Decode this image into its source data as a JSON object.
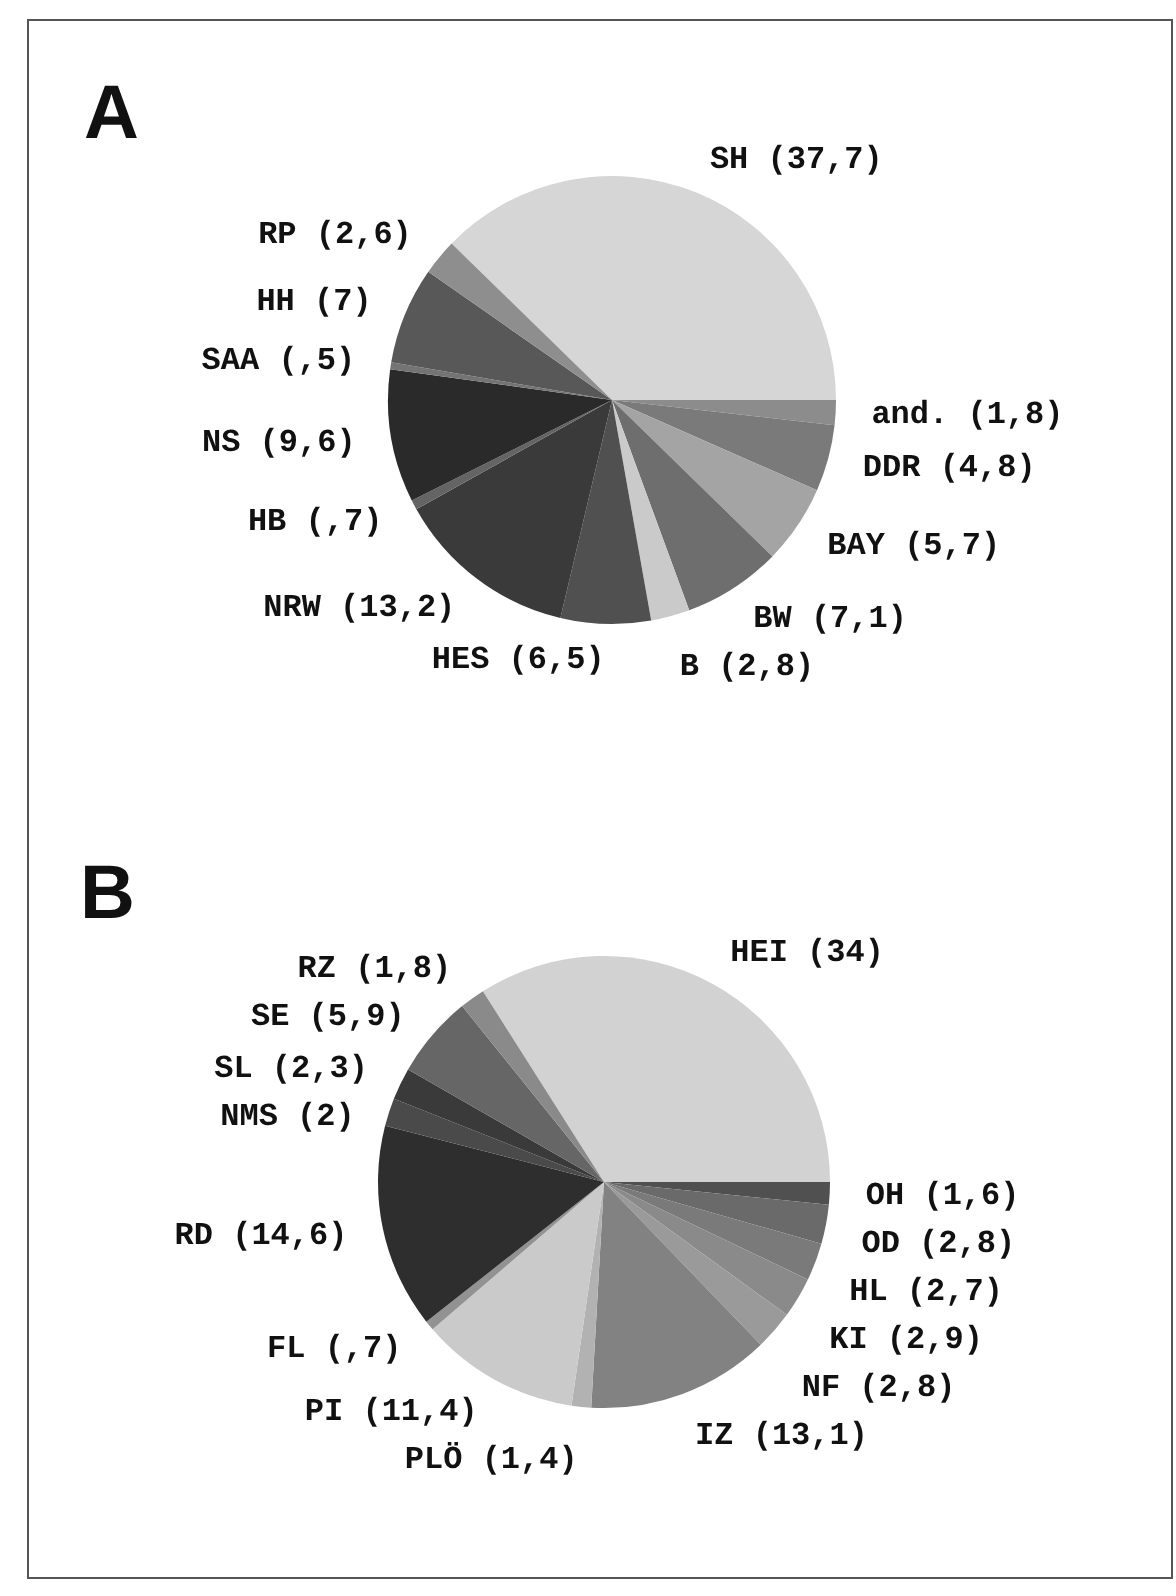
{
  "chart_data": [
    {
      "type": "pie",
      "title": "A",
      "categories": [
        "SH (37,7)",
        "and. (1,8)",
        "DDR (4,8)",
        "BAY (5,7)",
        "BW (7,1)",
        "B (2,8)",
        "HES (6,5)",
        "NRW (13,2)",
        "HB (,7)",
        "NS (9,6)",
        "SAA (,5)",
        "HH (7)",
        "RP (2,6)"
      ],
      "values": [
        37.7,
        1.8,
        4.8,
        5.7,
        7.1,
        2.8,
        6.5,
        13.2,
        0.7,
        9.6,
        0.5,
        7,
        2.6
      ],
      "colors": [
        "#d6d6d6",
        "#8c8c8c",
        "#7a7a7a",
        "#a4a4a4",
        "#6e6e6e",
        "#cacaca",
        "#505050",
        "#3a3a3a",
        "#646464",
        "#2a2a2a",
        "#747474",
        "#585858",
        "#8e8e8e"
      ]
    },
    {
      "type": "pie",
      "title": "B",
      "categories": [
        "HEI (34)",
        "OH (1,6)",
        "OD (2,8)",
        "HL (2,7)",
        "KI (2,9)",
        "NF (2,8)",
        "IZ (13,1)",
        "PLÖ (1,4)",
        "PI (11,4)",
        "FL (,7)",
        "RD (14,6)",
        "NMS (2)",
        "SL (2,3)",
        "SE (5,9)",
        "RZ (1,8)"
      ],
      "values": [
        34,
        1.6,
        2.8,
        2.7,
        2.9,
        2.8,
        13.1,
        1.4,
        11.4,
        0.7,
        14.6,
        2,
        2.3,
        5.9,
        1.8
      ],
      "colors": [
        "#d2d2d2",
        "#505050",
        "#6a6a6a",
        "#7a7a7a",
        "#8a8a8a",
        "#9a9a9a",
        "#828282",
        "#b2b2b2",
        "#cacaca",
        "#929292",
        "#2e2e2e",
        "#4a4a4a",
        "#3a3a3a",
        "#666666",
        "#8a8a8a"
      ]
    }
  ]
}
